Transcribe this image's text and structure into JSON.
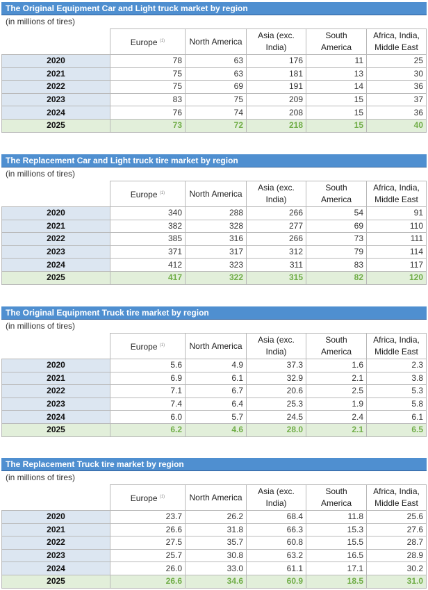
{
  "tables": [
    {
      "title": "The Original Equipment Car and Light truck market by region",
      "unit": "(in millions of tires)",
      "columns": [
        {
          "label": "Europe",
          "note": "(1)"
        },
        {
          "label": "North America"
        },
        {
          "label": "Asia (exc. India)"
        },
        {
          "label": "South America"
        },
        {
          "label": "Africa, India, Middle East"
        }
      ],
      "rows": [
        {
          "year": "2020",
          "values": [
            "78",
            "63",
            "176",
            "11",
            "25"
          ]
        },
        {
          "year": "2021",
          "values": [
            "75",
            "63",
            "181",
            "13",
            "30"
          ]
        },
        {
          "year": "2022",
          "values": [
            "75",
            "69",
            "191",
            "14",
            "36"
          ]
        },
        {
          "year": "2023",
          "values": [
            "83",
            "75",
            "209",
            "15",
            "37"
          ]
        },
        {
          "year": "2024",
          "values": [
            "76",
            "74",
            "208",
            "15",
            "36"
          ]
        },
        {
          "year": "2025",
          "values": [
            "73",
            "72",
            "218",
            "15",
            "40"
          ]
        }
      ]
    },
    {
      "title": "The Replacement Car and Light truck tire market by region",
      "unit": "(in millions of tires)",
      "columns": [
        {
          "label": "Europe",
          "note": "(1)"
        },
        {
          "label": "North America"
        },
        {
          "label": "Asia (exc. India)"
        },
        {
          "label": "South America"
        },
        {
          "label": "Africa, India, Middle East"
        }
      ],
      "rows": [
        {
          "year": "2020",
          "values": [
            "340",
            "288",
            "266",
            "54",
            "91"
          ]
        },
        {
          "year": "2021",
          "values": [
            "382",
            "328",
            "277",
            "69",
            "110"
          ]
        },
        {
          "year": "2022",
          "values": [
            "385",
            "316",
            "266",
            "73",
            "111"
          ]
        },
        {
          "year": "2023",
          "values": [
            "371",
            "317",
            "312",
            "79",
            "114"
          ]
        },
        {
          "year": "2024",
          "values": [
            "412",
            "323",
            "311",
            "83",
            "117"
          ]
        },
        {
          "year": "2025",
          "values": [
            "417",
            "322",
            "315",
            "82",
            "120"
          ]
        }
      ]
    },
    {
      "title": "The Original Equipment Truck tire market by region",
      "unit": "(in millions of tires)",
      "columns": [
        {
          "label": "Europe",
          "note": "(1)"
        },
        {
          "label": "North America"
        },
        {
          "label": "Asia (exc. India)"
        },
        {
          "label": "South America"
        },
        {
          "label": "Africa, India, Middle East"
        }
      ],
      "rows": [
        {
          "year": "2020",
          "values": [
            "5.6",
            "4.9",
            "37.3",
            "1.6",
            "2.3"
          ]
        },
        {
          "year": "2021",
          "values": [
            "6.9",
            "6.1",
            "32.9",
            "2.1",
            "3.8"
          ]
        },
        {
          "year": "2022",
          "values": [
            "7.1",
            "6.7",
            "20.6",
            "2.5",
            "5.3"
          ]
        },
        {
          "year": "2023",
          "values": [
            "7.4",
            "6.4",
            "25.3",
            "1.9",
            "5.8"
          ]
        },
        {
          "year": "2024",
          "values": [
            "6.0",
            "5.7",
            "24.5",
            "2.4",
            "6.1"
          ]
        },
        {
          "year": "2025",
          "values": [
            "6.2",
            "4.6",
            "28.0",
            "2.1",
            "6.5"
          ]
        }
      ]
    },
    {
      "title": "The Replacement Truck tire market by region",
      "unit": "(in millions of tires)",
      "columns": [
        {
          "label": "Europe",
          "note": "(1)"
        },
        {
          "label": "North America"
        },
        {
          "label": "Asia (exc. India)"
        },
        {
          "label": "South America"
        },
        {
          "label": "Africa, India, Middle East"
        }
      ],
      "rows": [
        {
          "year": "2020",
          "values": [
            "23.7",
            "26.2",
            "68.4",
            "11.8",
            "25.6"
          ]
        },
        {
          "year": "2021",
          "values": [
            "26.6",
            "31.8",
            "66.3",
            "15.3",
            "27.6"
          ]
        },
        {
          "year": "2022",
          "values": [
            "27.5",
            "35.7",
            "60.8",
            "15.5",
            "28.7"
          ]
        },
        {
          "year": "2023",
          "values": [
            "25.7",
            "30.8",
            "63.2",
            "16.5",
            "28.9"
          ]
        },
        {
          "year": "2024",
          "values": [
            "26.0",
            "33.0",
            "61.1",
            "17.1",
            "30.2"
          ]
        },
        {
          "year": "2025",
          "values": [
            "26.6",
            "34.6",
            "60.9",
            "18.5",
            "31.0"
          ]
        }
      ]
    }
  ]
}
